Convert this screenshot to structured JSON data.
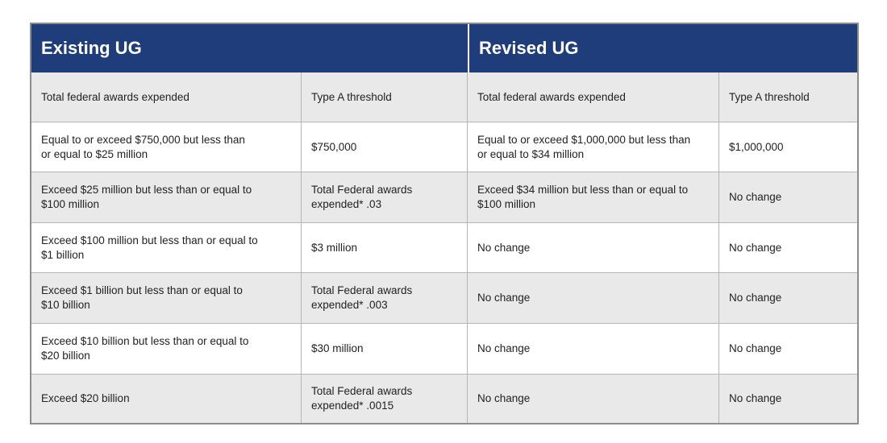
{
  "header": {
    "groups": [
      "Existing UG",
      "Revised UG"
    ]
  },
  "table": {
    "columns": [
      "Total federal awards expended",
      "Type A threshold",
      "Total federal awards expended",
      "Type A threshold"
    ],
    "rows": [
      [
        [
          "Equal to or exceed $750,000 but less than",
          "or equal to $25 million"
        ],
        [
          "$750,000"
        ],
        [
          "Equal to or exceed $1,000,000 but less than",
          "or equal to $34 million"
        ],
        [
          "$1,000,000"
        ]
      ],
      [
        [
          "Exceed $25 million but less than or equal to",
          "$100 million"
        ],
        [
          "Total Federal awards",
          "expended* .03"
        ],
        [
          "Exceed $34 million but less than or equal to",
          "$100 million"
        ],
        [
          "No change"
        ]
      ],
      [
        [
          "Exceed $100 million but less than or equal to",
          "$1 billion"
        ],
        [
          "$3 million"
        ],
        [
          "No change"
        ],
        [
          "No change"
        ]
      ],
      [
        [
          "Exceed $1 billion but less than or equal to",
          "$10 billion"
        ],
        [
          "Total Federal awards",
          "expended* .003"
        ],
        [
          "No change"
        ],
        [
          "No change"
        ]
      ],
      [
        [
          "Exceed $10 billion but less than or equal to",
          "$20 billion"
        ],
        [
          "$30 million"
        ],
        [
          "No change"
        ],
        [
          "No change"
        ]
      ],
      [
        [
          "Exceed $20 billion"
        ],
        [
          "Total Federal awards",
          "expended* .0015"
        ],
        [
          "No change"
        ],
        [
          "No change"
        ]
      ]
    ]
  }
}
